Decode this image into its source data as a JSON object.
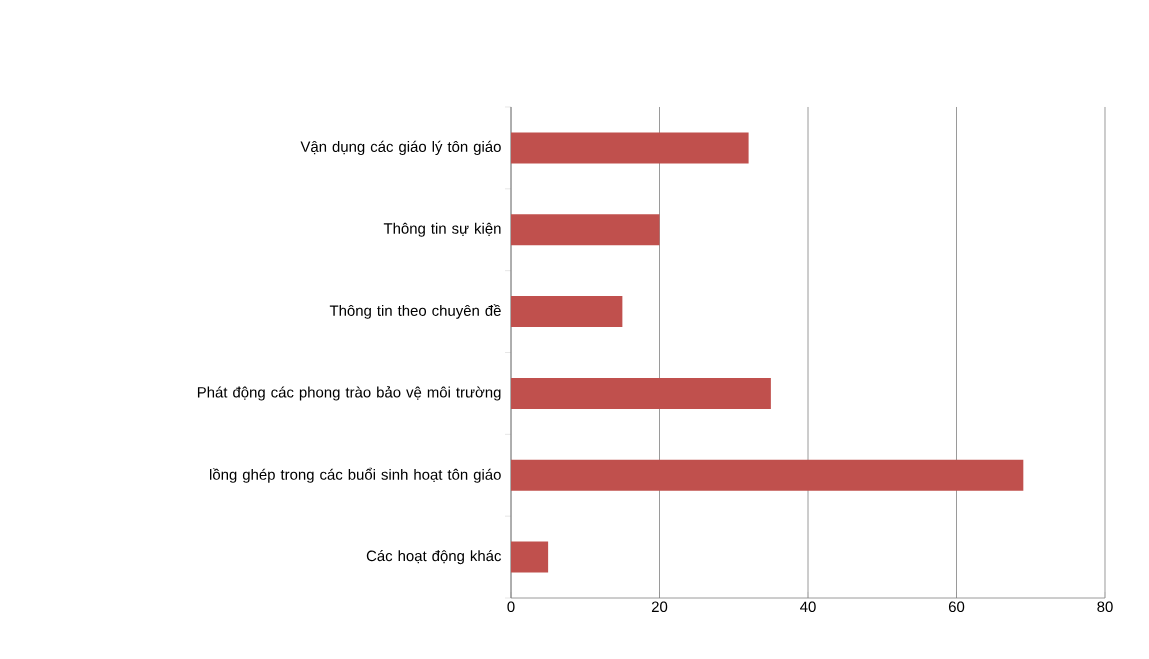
{
  "chart_data": {
    "type": "bar",
    "orientation": "horizontal",
    "categories": [
      "Vận dụng các giáo lý tôn giáo",
      "Thông tin sự kiện",
      "Thông tin theo chuyên đề",
      "Phát động các phong trào bảo vệ môi trường",
      "lồng ghép trong các buổi sinh hoạt tôn giáo",
      "Các hoạt động khác"
    ],
    "values": [
      32,
      20,
      15,
      35,
      69,
      5
    ],
    "color": "#c0504d",
    "xlim": [
      0,
      80
    ],
    "xticks": [
      0,
      20,
      40,
      60,
      80
    ],
    "grid": "x"
  }
}
